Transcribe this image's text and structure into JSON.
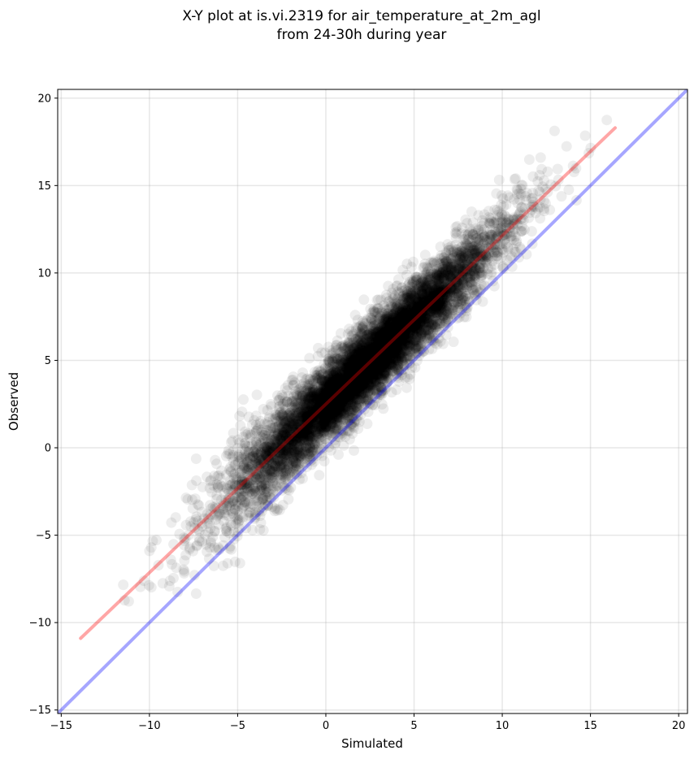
{
  "chart_data": {
    "type": "scatter",
    "title_line1": "X-Y plot at is.vi.2319 for air_temperature_at_2m_agl",
    "title_line2": "from 24-30h during year",
    "xlabel": "Simulated",
    "ylabel": "Observed",
    "xlim": [
      -15.2,
      20.5
    ],
    "ylim": [
      -15.2,
      20.5
    ],
    "xticks": [
      -15,
      -10,
      -5,
      0,
      5,
      10,
      15,
      20
    ],
    "yticks": [
      -15,
      -10,
      -5,
      0,
      5,
      10,
      15,
      20
    ],
    "xtick_labels": [
      "−15",
      "−10",
      "−5",
      "0",
      "5",
      "10",
      "15",
      "20"
    ],
    "ytick_labels": [
      "−15",
      "−10",
      "−5",
      "0",
      "5",
      "10",
      "15",
      "20"
    ],
    "grid": true,
    "point_color": "#000000",
    "point_alpha": 0.07,
    "points": {
      "approx_count": 8000,
      "simulated_range": [
        -13.8,
        16.4
      ],
      "observed_range": [
        -10.7,
        18.9
      ],
      "fit_slope": 0.97,
      "fit_intercept": 2.5,
      "residual_std": 1.1
    },
    "fit_line": {
      "color": "#ff0000",
      "x": [
        -13.9,
        16.4
      ],
      "y": [
        -10.9,
        18.3
      ]
    },
    "one_to_one_line": {
      "color": "#0000ff",
      "x": [
        -15.2,
        20.5
      ],
      "y": [
        -15.2,
        20.5
      ]
    }
  }
}
